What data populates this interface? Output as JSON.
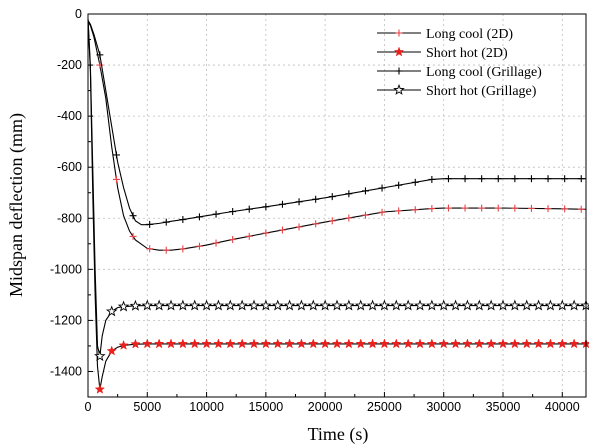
{
  "chart_data": {
    "type": "line",
    "title": "",
    "xlabel": "Time (s)",
    "ylabel": "Midspan deflection (mm)",
    "xlim": [
      0,
      42000
    ],
    "ylim": [
      -1500,
      0
    ],
    "xticks": [
      0,
      5000,
      10000,
      15000,
      20000,
      25000,
      30000,
      35000,
      40000
    ],
    "yticks": [
      0,
      -200,
      -400,
      -600,
      -800,
      -1000,
      -1200,
      -1400
    ],
    "grid": true,
    "legend_position": "top-right",
    "series": [
      {
        "name": "Long cool (2D)",
        "color": "#e8454a",
        "line_color": "#000000",
        "marker": "plus",
        "x": [
          0,
          200,
          500,
          1000,
          1500,
          2000,
          2500,
          3000,
          3500,
          4000,
          5000,
          6000,
          7000,
          8000,
          10000,
          12000,
          15000,
          20000,
          25000,
          29000,
          30000,
          35000,
          40000,
          42000
        ],
        "y": [
          -30,
          -45,
          -90,
          -200,
          -330,
          -520,
          -680,
          -790,
          -850,
          -885,
          -918,
          -925,
          -925,
          -920,
          -905,
          -885,
          -858,
          -815,
          -775,
          -762,
          -760,
          -760,
          -763,
          -765
        ]
      },
      {
        "name": "Short hot (2D)",
        "color": "#e8201e",
        "line_color": "#000000",
        "marker": "star",
        "x": [
          0,
          200,
          400,
          600,
          800,
          1000,
          1200,
          1500,
          2000,
          2500,
          3000,
          4000,
          5000,
          10000,
          20000,
          30000,
          40000,
          42000
        ],
        "y": [
          -20,
          -220,
          -700,
          -1100,
          -1380,
          -1470,
          -1420,
          -1360,
          -1320,
          -1305,
          -1298,
          -1293,
          -1292,
          -1292,
          -1292,
          -1292,
          -1292,
          -1292
        ]
      },
      {
        "name": "Long cool (Grillage)",
        "color": "#000000",
        "line_color": "#000000",
        "marker": "plus",
        "x": [
          0,
          200,
          500,
          1000,
          1500,
          2000,
          2500,
          3000,
          3500,
          4000,
          4500,
          5000,
          6000,
          7000,
          8000,
          10000,
          12000,
          15000,
          20000,
          25000,
          29000,
          30000,
          35000,
          40000,
          42000
        ],
        "y": [
          -25,
          -40,
          -80,
          -160,
          -300,
          -440,
          -580,
          -680,
          -760,
          -810,
          -825,
          -825,
          -820,
          -812,
          -805,
          -790,
          -775,
          -755,
          -720,
          -680,
          -648,
          -645,
          -645,
          -645,
          -645
        ]
      },
      {
        "name": "Short hot (Grillage)",
        "color": "#000000",
        "line_color": "#000000",
        "marker": "star-open",
        "x": [
          0,
          200,
          400,
          600,
          800,
          1000,
          1200,
          1500,
          2000,
          2500,
          3000,
          4000,
          5000,
          10000,
          20000,
          30000,
          40000,
          42000
        ],
        "y": [
          -20,
          -200,
          -600,
          -1000,
          -1300,
          -1340,
          -1260,
          -1200,
          -1165,
          -1150,
          -1146,
          -1143,
          -1142,
          -1142,
          -1142,
          -1142,
          -1142,
          -1142
        ]
      }
    ]
  }
}
